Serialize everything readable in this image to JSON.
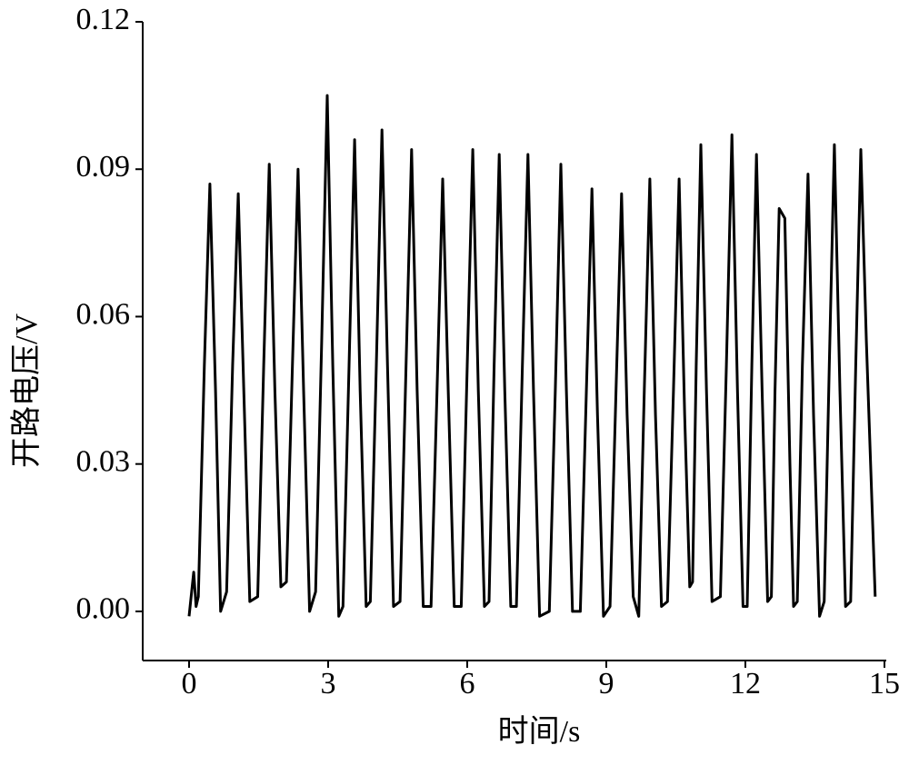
{
  "chart_data": {
    "type": "line",
    "x_label": "时间/s",
    "y_label": "开路电压/V",
    "color": "#000000",
    "xlim": [
      -1,
      15
    ],
    "xticks": [
      0,
      3,
      6,
      9,
      12,
      15
    ],
    "ylim": [
      -0.01,
      0.12
    ],
    "yticks": [
      {
        "value": 0,
        "label": "0.00"
      },
      0.03,
      0.06,
      0.09,
      0.12
    ],
    "x": [
      0.0,
      0.1,
      0.15,
      0.2,
      0.33,
      0.45,
      0.57,
      0.68,
      0.81,
      0.94,
      1.06,
      1.18,
      1.31,
      1.48,
      1.61,
      1.73,
      1.85,
      1.98,
      2.1,
      2.23,
      2.35,
      2.47,
      2.6,
      2.73,
      2.86,
      2.98,
      3.1,
      3.23,
      3.32,
      3.45,
      3.57,
      3.69,
      3.82,
      3.91,
      4.04,
      4.16,
      4.28,
      4.41,
      4.55,
      4.68,
      4.8,
      4.92,
      5.05,
      5.22,
      5.35,
      5.47,
      5.59,
      5.72,
      5.87,
      6.0,
      6.12,
      6.24,
      6.37,
      6.47,
      6.58,
      6.69,
      6.81,
      6.94,
      7.06,
      7.19,
      7.31,
      7.43,
      7.56,
      7.77,
      7.9,
      8.02,
      8.14,
      8.27,
      8.44,
      8.57,
      8.69,
      8.81,
      8.94,
      9.08,
      9.21,
      9.33,
      9.45,
      9.58,
      9.7,
      9.82,
      9.94,
      10.06,
      10.19,
      10.32,
      10.45,
      10.57,
      10.69,
      10.8,
      10.86,
      10.94,
      11.04,
      11.16,
      11.28,
      11.46,
      11.59,
      11.71,
      11.83,
      11.95,
      12.04,
      12.14,
      12.24,
      12.36,
      12.48,
      12.56,
      12.64,
      12.73,
      12.85,
      12.96,
      13.04,
      13.12,
      13.23,
      13.35,
      13.47,
      13.6,
      13.7,
      13.81,
      13.92,
      14.04,
      14.16,
      14.27,
      14.38,
      14.49,
      14.61,
      14.8
    ],
    "values": [
      -0.001,
      0.008,
      0.001,
      0.003,
      0.05,
      0.087,
      0.045,
      0.0,
      0.004,
      0.05,
      0.085,
      0.045,
      0.002,
      0.003,
      0.05,
      0.091,
      0.045,
      0.005,
      0.006,
      0.05,
      0.09,
      0.045,
      0.0,
      0.004,
      0.055,
      0.105,
      0.05,
      -0.001,
      0.001,
      0.05,
      0.096,
      0.045,
      0.001,
      0.002,
      0.05,
      0.098,
      0.05,
      0.001,
      0.002,
      0.05,
      0.094,
      0.045,
      0.001,
      0.001,
      0.045,
      0.088,
      0.045,
      0.001,
      0.001,
      0.05,
      0.094,
      0.045,
      0.001,
      0.002,
      0.05,
      0.093,
      0.045,
      0.001,
      0.001,
      0.05,
      0.093,
      0.045,
      -0.001,
      0.0,
      0.045,
      0.091,
      0.045,
      0.0,
      0.0,
      0.045,
      0.086,
      0.04,
      -0.001,
      0.001,
      0.045,
      0.085,
      0.04,
      0.003,
      -0.001,
      0.045,
      0.088,
      0.04,
      0.001,
      0.002,
      0.045,
      0.088,
      0.04,
      0.005,
      0.006,
      0.05,
      0.095,
      0.045,
      0.002,
      0.003,
      0.05,
      0.097,
      0.045,
      0.001,
      0.001,
      0.05,
      0.093,
      0.045,
      0.002,
      0.003,
      0.045,
      0.082,
      0.08,
      0.03,
      0.001,
      0.002,
      0.05,
      0.089,
      0.04,
      -0.001,
      0.002,
      0.05,
      0.095,
      0.045,
      0.001,
      0.002,
      0.05,
      0.094,
      0.055,
      0.003
    ]
  }
}
